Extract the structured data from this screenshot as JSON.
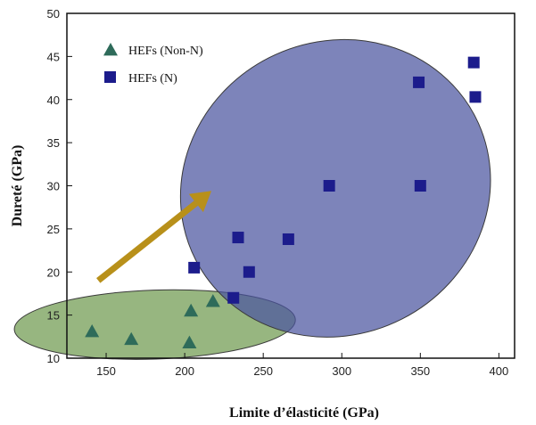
{
  "chart_data": {
    "type": "scatter",
    "xlabel": "Limite d’élasticité (GPa)",
    "ylabel": "Dureté (GPa)",
    "xlim": [
      125,
      410
    ],
    "ylim": [
      10,
      50
    ],
    "xticks": [
      150,
      200,
      250,
      300,
      350,
      400
    ],
    "yticks": [
      10,
      15,
      20,
      25,
      30,
      35,
      40,
      45,
      50
    ],
    "legend_position": "top-left",
    "series": [
      {
        "name": "HEFs (Non-N)",
        "marker": "triangle",
        "color": "#2e6b5a",
        "points": [
          {
            "x": 141,
            "y": 13.1
          },
          {
            "x": 166,
            "y": 12.2
          },
          {
            "x": 203,
            "y": 11.8
          },
          {
            "x": 204,
            "y": 15.5
          },
          {
            "x": 218,
            "y": 16.6
          }
        ]
      },
      {
        "name": "HEFs (N)",
        "marker": "square",
        "color": "#1c1c8c",
        "points": [
          {
            "x": 206,
            "y": 20.5
          },
          {
            "x": 231,
            "y": 17.0
          },
          {
            "x": 234,
            "y": 24.0
          },
          {
            "x": 241,
            "y": 20.0
          },
          {
            "x": 266,
            "y": 23.8
          },
          {
            "x": 292,
            "y": 30.0
          },
          {
            "x": 350,
            "y": 30.0
          },
          {
            "x": 349,
            "y": 42.0
          },
          {
            "x": 384,
            "y": 44.3
          },
          {
            "x": 385,
            "y": 40.3
          }
        ]
      }
    ],
    "regions": [
      {
        "kind": "ellipse",
        "group": "HEFs (Non-N)",
        "color": "#6f9a4f",
        "cx": 181,
        "cy": 13.9,
        "rx_x": 89.5,
        "ry_y": 4.0,
        "angle_deg": -2
      },
      {
        "kind": "ellipse",
        "group": "HEFs (N)",
        "color": "#4b55a0",
        "cx": 296,
        "cy": 29.7,
        "rx_x": 100,
        "ry_y": 17,
        "angle_deg": -27
      }
    ],
    "arrow": {
      "color": "#b8901a",
      "from": {
        "x": 145,
        "y": 19.0
      },
      "to": {
        "x": 217,
        "y": 29.4
      }
    }
  }
}
